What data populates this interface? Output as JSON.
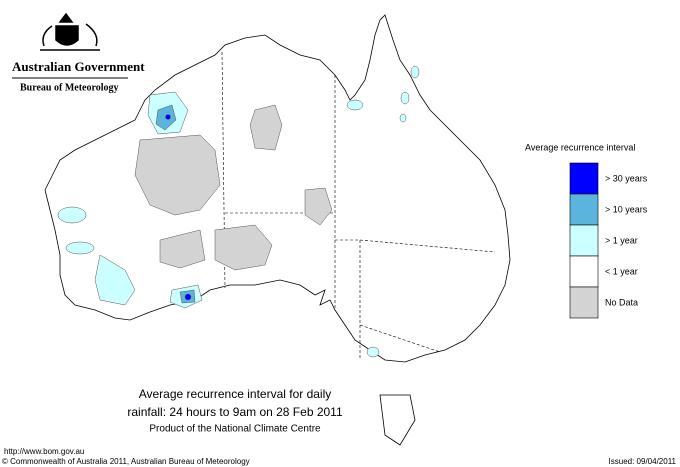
{
  "header": {
    "title": "Australian Government",
    "subtitle": "Bureau of Meteorology"
  },
  "legend": {
    "title": "Average recurrence interval",
    "items": [
      {
        "label": "> 30 years",
        "color": "#0000ff"
      },
      {
        "label": "> 10 years",
        "color": "#5ab4dc"
      },
      {
        "label": "> 1 year",
        "color": "#ccffff"
      },
      {
        "label": "< 1 year",
        "color": "#ffffff"
      },
      {
        "label": "No Data",
        "color": "#d3d3d3"
      }
    ]
  },
  "caption": [
    "Average recurrence interval for daily",
    "rainfall: 24 hours to 9am on 28 Feb 2011",
    "Product of the National Climate Centre"
  ],
  "footer": {
    "url": "http://www.bom.gov.au",
    "copyright": "© Commonwealth of Australia 2011, Australian Bureau of Meteorology",
    "issued": "Issued: 09/04/2011"
  }
}
